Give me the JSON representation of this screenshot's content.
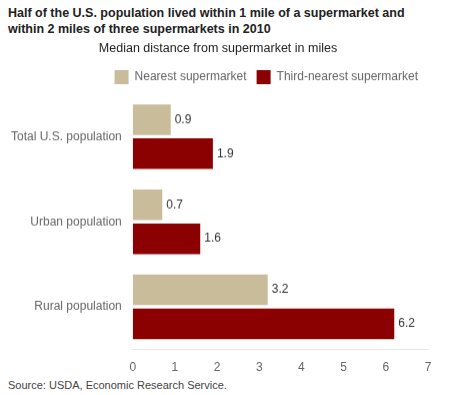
{
  "chart_data": {
    "type": "bar",
    "orientation": "horizontal",
    "title": "Half of the U.S. population lived within 1 mile of a supermarket and within 2 miles of three supermarkets in 2010",
    "subtitle": "Median distance from supermarket in miles",
    "source": "Source: USDA, Economic Research Service.",
    "categories": [
      "Rural population",
      "Urban population",
      "Total U.S. population"
    ],
    "series": [
      {
        "name": "Nearest supermarket",
        "color": "#C8BC9A",
        "values": [
          3.2,
          0.7,
          0.9
        ]
      },
      {
        "name": "Third-nearest supermarket",
        "color": "#8B0000",
        "values": [
          6.2,
          1.6,
          1.9
        ]
      }
    ],
    "xlim": [
      0,
      7
    ],
    "xticks": [
      0,
      1,
      2,
      3,
      4,
      5,
      6,
      7
    ],
    "grid": false,
    "legend": "upper right",
    "data_labels": true
  }
}
